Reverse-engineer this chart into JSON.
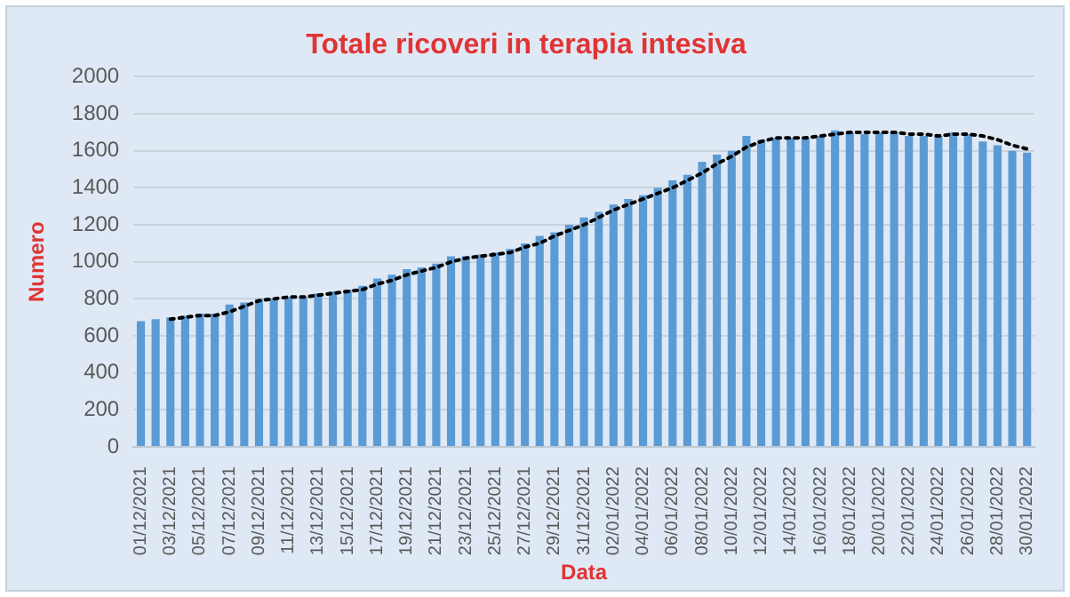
{
  "chart_data": {
    "type": "bar",
    "title": "Totale ricoveri in terapia intesiva",
    "xlabel": "Data",
    "ylabel": "Numero",
    "categories": [
      "01/12/2021",
      null,
      "03/12/2021",
      null,
      "05/12/2021",
      null,
      "07/12/2021",
      null,
      "09/12/2021",
      null,
      "11/12/2021",
      null,
      "13/12/2021",
      null,
      "15/12/2021",
      null,
      "17/12/2021",
      null,
      "19/12/2021",
      null,
      "21/12/2021",
      null,
      "23/12/2021",
      null,
      "25/12/2021",
      null,
      "27/12/2021",
      null,
      "29/12/2021",
      null,
      "31/12/2021",
      null,
      "02/01/2022",
      null,
      "04/01/2022",
      null,
      "06/01/2022",
      null,
      "08/01/2022",
      null,
      "10/01/2022",
      null,
      "12/01/2022",
      null,
      "14/01/2022",
      null,
      "16/01/2022",
      null,
      "18/01/2022",
      null,
      "20/01/2022",
      null,
      "22/01/2022",
      null,
      "24/01/2022",
      null,
      "26/01/2022",
      null,
      "28/01/2022",
      null,
      "30/01/2022"
    ],
    "series": [
      {
        "color": "#5b9bd5",
        "values": [
          680,
          690,
          700,
          710,
          720,
          720,
          770,
          780,
          800,
          800,
          810,
          810,
          830,
          840,
          850,
          870,
          910,
          930,
          960,
          970,
          990,
          1030,
          1030,
          1040,
          1050,
          1070,
          1100,
          1140,
          1160,
          1200,
          1240,
          1270,
          1310,
          1340,
          1360,
          1400,
          1440,
          1470,
          1540,
          1580,
          1600,
          1680,
          1660,
          1670,
          1670,
          1670,
          1680,
          1710,
          1700,
          1690,
          1700,
          1700,
          1680,
          1680,
          1680,
          1700,
          1690,
          1650,
          1630,
          1600,
          1590
        ]
      },
      {
        "type": "line",
        "color": "#000000",
        "line_style": "dotted",
        "marker": "none",
        "values": [
          null,
          null,
          690,
          700,
          710,
          710,
          730,
          760,
          790,
          800,
          810,
          810,
          820,
          830,
          840,
          850,
          880,
          900,
          930,
          950,
          970,
          1000,
          1020,
          1030,
          1040,
          1050,
          1080,
          1100,
          1140,
          1170,
          1200,
          1240,
          1280,
          1310,
          1340,
          1370,
          1400,
          1440,
          1480,
          1530,
          1570,
          1620,
          1650,
          1670,
          1670,
          1670,
          1680,
          1690,
          1700,
          1700,
          1700,
          1700,
          1690,
          1690,
          1680,
          1690,
          1690,
          1680,
          1660,
          1630,
          1610
        ]
      }
    ],
    "ylim": [
      0,
      2000
    ],
    "yticks": [
      0,
      200,
      400,
      600,
      800,
      1000,
      1200,
      1400,
      1600,
      1800,
      2000
    ],
    "grid": "y",
    "legend": false
  }
}
